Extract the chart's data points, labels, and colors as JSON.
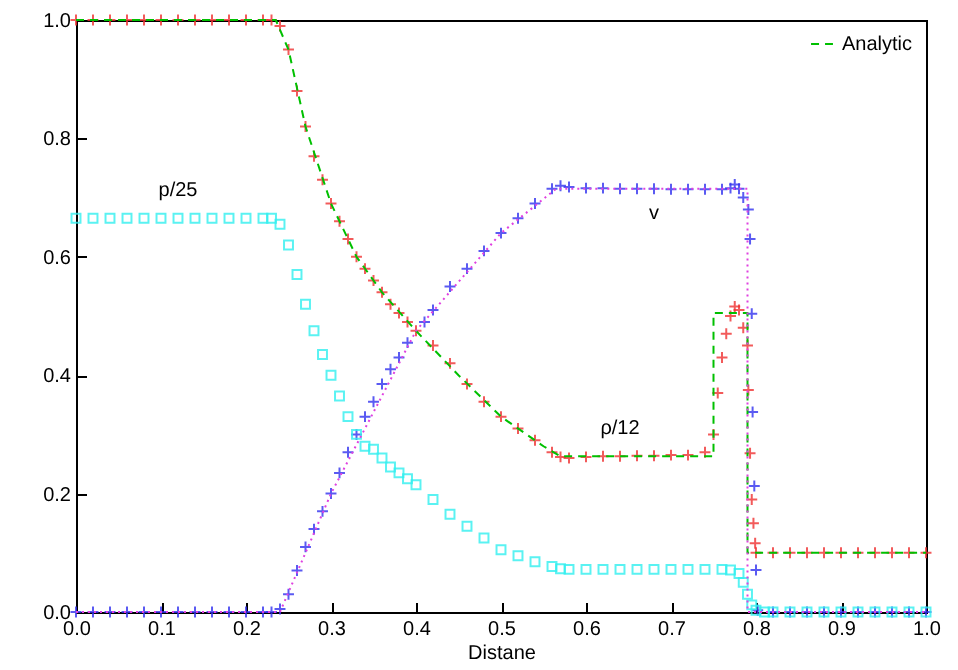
{
  "chart_data": {
    "type": "scatter",
    "xlabel": "Distane",
    "xlim": [
      0,
      1
    ],
    "ylim": [
      0,
      1
    ],
    "xticks": [
      {
        "value": 0,
        "label": "0.0"
      },
      0.1,
      0.2,
      0.3,
      0.4,
      0.5,
      0.6,
      0.7,
      0.8,
      0.9,
      {
        "value": 1,
        "label": "1.0"
      }
    ],
    "yticks": [
      {
        "value": 0,
        "label": "0.0"
      },
      0.2,
      0.4,
      0.6,
      0.8,
      {
        "value": 1,
        "label": "1.0"
      }
    ],
    "grid": false,
    "legend": "top right",
    "series": [
      {
        "type": "scatter",
        "name": "ρ/12",
        "marker": "cross",
        "color": "#f03232",
        "x": [
          0,
          0.02,
          0.04,
          0.06,
          0.08,
          0.1,
          0.12,
          0.14,
          0.16,
          0.18,
          0.2,
          0.22,
          0.23,
          0.24,
          0.25,
          0.26,
          0.27,
          0.28,
          0.29,
          0.3,
          0.31,
          0.32,
          0.33,
          0.34,
          0.35,
          0.36,
          0.37,
          0.38,
          0.39,
          0.4,
          0.42,
          0.44,
          0.46,
          0.48,
          0.5,
          0.52,
          0.54,
          0.56,
          0.57,
          0.58,
          0.6,
          0.62,
          0.64,
          0.66,
          0.68,
          0.7,
          0.72,
          0.74,
          0.75,
          0.755,
          0.76,
          0.765,
          0.77,
          0.775,
          0.78,
          0.785,
          0.79,
          0.791,
          0.793,
          0.795,
          0.797,
          0.799,
          0.8,
          0.82,
          0.84,
          0.86,
          0.88,
          0.9,
          0.92,
          0.94,
          0.96,
          0.98,
          1
        ],
        "values": [
          1,
          1,
          1,
          1,
          1,
          1,
          1,
          1,
          1,
          1,
          1,
          1,
          1,
          0.99,
          0.95,
          0.88,
          0.82,
          0.77,
          0.73,
          0.69,
          0.66,
          0.63,
          0.6,
          0.58,
          0.56,
          0.54,
          0.52,
          0.505,
          0.49,
          0.475,
          0.45,
          0.42,
          0.385,
          0.355,
          0.33,
          0.31,
          0.29,
          0.27,
          0.262,
          0.26,
          0.262,
          0.263,
          0.263,
          0.264,
          0.264,
          0.265,
          0.265,
          0.27,
          0.3,
          0.37,
          0.43,
          0.47,
          0.5,
          0.516,
          0.51,
          0.48,
          0.45,
          0.375,
          0.268,
          0.19,
          0.15,
          0.116,
          0.1,
          0.1,
          0.1,
          0.1,
          0.1,
          0.1,
          0.1,
          0.1,
          0.1,
          0.1,
          0.1
        ]
      },
      {
        "type": "scatter",
        "name": "v",
        "marker": "cross",
        "color": "#3232f0",
        "x": [
          0,
          0.02,
          0.04,
          0.06,
          0.08,
          0.1,
          0.12,
          0.14,
          0.16,
          0.18,
          0.2,
          0.22,
          0.23,
          0.24,
          0.25,
          0.26,
          0.27,
          0.28,
          0.29,
          0.3,
          0.31,
          0.32,
          0.33,
          0.34,
          0.35,
          0.36,
          0.37,
          0.38,
          0.39,
          0.41,
          0.42,
          0.44,
          0.46,
          0.48,
          0.5,
          0.52,
          0.54,
          0.56,
          0.57,
          0.58,
          0.6,
          0.62,
          0.64,
          0.66,
          0.68,
          0.7,
          0.72,
          0.74,
          0.76,
          0.77,
          0.775,
          0.78,
          0.785,
          0.791,
          0.793,
          0.795,
          0.796,
          0.798,
          0.8,
          0.802,
          0.82,
          0.84,
          0.86,
          0.88,
          0.9,
          0.92,
          0.94,
          0.96,
          0.98,
          1
        ],
        "values": [
          0,
          0,
          0,
          0,
          0,
          0,
          0,
          0,
          0,
          0,
          0,
          0,
          0,
          0.005,
          0.03,
          0.07,
          0.11,
          0.14,
          0.17,
          0.2,
          0.235,
          0.27,
          0.3,
          0.33,
          0.355,
          0.385,
          0.41,
          0.43,
          0.455,
          0.49,
          0.51,
          0.55,
          0.58,
          0.61,
          0.64,
          0.665,
          0.69,
          0.715,
          0.72,
          0.718,
          0.716,
          0.716,
          0.715,
          0.715,
          0.715,
          0.714,
          0.714,
          0.714,
          0.714,
          0.716,
          0.722,
          0.715,
          0.7,
          0.68,
          0.63,
          0.504,
          0.338,
          0.213,
          0.071,
          0.003,
          0,
          0,
          0,
          0,
          0,
          0,
          0,
          0,
          0,
          0
        ]
      },
      {
        "type": "scatter",
        "name": "p/25",
        "marker": "square",
        "color": "#32f0f0",
        "x": [
          0,
          0.02,
          0.04,
          0.06,
          0.08,
          0.1,
          0.12,
          0.14,
          0.16,
          0.18,
          0.2,
          0.22,
          0.23,
          0.24,
          0.25,
          0.26,
          0.27,
          0.28,
          0.29,
          0.3,
          0.31,
          0.32,
          0.33,
          0.34,
          0.35,
          0.36,
          0.37,
          0.38,
          0.39,
          0.4,
          0.42,
          0.44,
          0.46,
          0.48,
          0.5,
          0.52,
          0.54,
          0.56,
          0.57,
          0.58,
          0.6,
          0.62,
          0.64,
          0.66,
          0.68,
          0.7,
          0.72,
          0.74,
          0.76,
          0.77,
          0.78,
          0.785,
          0.79,
          0.795,
          0.8,
          0.81,
          0.82,
          0.84,
          0.86,
          0.88,
          0.9,
          0.92,
          0.94,
          0.96,
          0.98,
          1
        ],
        "values": [
          0.665,
          0.665,
          0.665,
          0.665,
          0.665,
          0.665,
          0.665,
          0.665,
          0.665,
          0.665,
          0.665,
          0.665,
          0.665,
          0.655,
          0.62,
          0.57,
          0.52,
          0.475,
          0.435,
          0.4,
          0.365,
          0.33,
          0.3,
          0.28,
          0.275,
          0.26,
          0.245,
          0.235,
          0.225,
          0.215,
          0.19,
          0.165,
          0.145,
          0.125,
          0.105,
          0.095,
          0.085,
          0.077,
          0.073,
          0.072,
          0.072,
          0.072,
          0.072,
          0.072,
          0.072,
          0.072,
          0.072,
          0.072,
          0.072,
          0.071,
          0.065,
          0.05,
          0.03,
          0.012,
          0.003,
          0,
          0,
          0,
          0,
          0,
          0,
          0,
          0,
          0,
          0,
          0
        ]
      },
      {
        "type": "line",
        "name": "Analytic",
        "line_style": "dashed",
        "color": "#00c000",
        "x": [
          0,
          0.235,
          0.25,
          0.27,
          0.3,
          0.33,
          0.36,
          0.4,
          0.45,
          0.5,
          0.55,
          0.57,
          0.75,
          0.75,
          0.79,
          0.79,
          1
        ],
        "values": [
          1,
          1,
          0.95,
          0.82,
          0.69,
          0.6,
          0.54,
          0.475,
          0.4,
          0.33,
          0.28,
          0.263,
          0.263,
          0.505,
          0.505,
          0.1,
          0.1
        ]
      },
      {
        "type": "line",
        "line_style": "dotted",
        "color": "#e040e0",
        "x": [
          0,
          0.24,
          0.3,
          0.4,
          0.5,
          0.565,
          0.79,
          0.79,
          1
        ],
        "values": [
          0,
          0,
          0.2,
          0.475,
          0.64,
          0.715,
          0.715,
          0,
          0
        ]
      }
    ]
  }
}
